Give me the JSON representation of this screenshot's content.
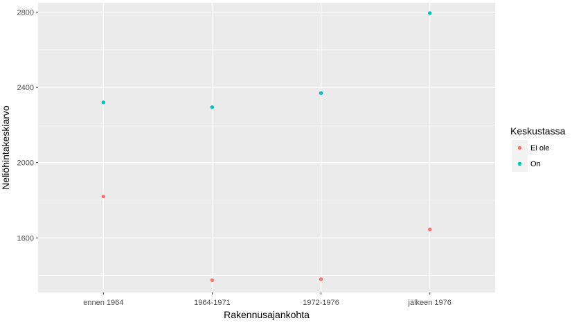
{
  "chart_data": {
    "type": "scatter",
    "xlabel": "Rakennusajankohta",
    "ylabel": "Neliöhintakeskiarvo",
    "categories": [
      "ennen 1964",
      "1964-1971",
      "1972-1976",
      "jälkeen 1976"
    ],
    "y_ticks": [
      1600,
      2000,
      2400,
      2800
    ],
    "ylim": [
      1310,
      2850
    ],
    "grid": true,
    "legend": {
      "title": "Keskustassa",
      "placement": "right"
    },
    "series": [
      {
        "name": "Ei ole",
        "color": "#F8766D",
        "values": [
          1820,
          1375,
          1380,
          1645
        ]
      },
      {
        "name": "On",
        "color": "#00BFC4",
        "values": [
          2320,
          2295,
          2370,
          2795
        ]
      }
    ]
  }
}
